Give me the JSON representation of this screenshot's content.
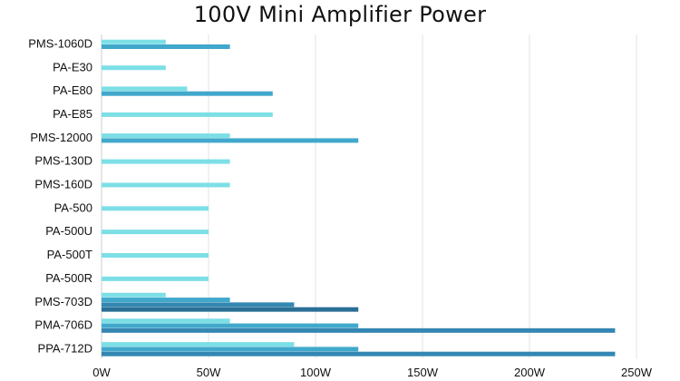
{
  "chart_data": {
    "type": "bar",
    "orientation": "horizontal",
    "title": "100V Mini Amplifier Power",
    "categories": [
      "PMS-1060D",
      "PA-E30",
      "PA-E80",
      "PA-E85",
      "PMS-12000",
      "PMS-130D",
      "PMS-160D",
      "PA-500",
      "PA-500U",
      "PA-500T",
      "PA-500R",
      "PMS-703D",
      "PMA-706D",
      "PPA-712D"
    ],
    "bars": [
      [
        {
          "value": 30,
          "color": "#7ddfe6"
        },
        {
          "value": 60,
          "color": "#41a8cc"
        }
      ],
      [
        {
          "value": 30,
          "color": "#7ddfe6"
        }
      ],
      [
        {
          "value": 40,
          "color": "#7ddfe6"
        },
        {
          "value": 80,
          "color": "#41a8cc"
        }
      ],
      [
        {
          "value": 80,
          "color": "#7ddfe6"
        }
      ],
      [
        {
          "value": 60,
          "color": "#7ddfe6"
        },
        {
          "value": 120,
          "color": "#41a8cc"
        }
      ],
      [
        {
          "value": 60,
          "color": "#7ddfe6"
        }
      ],
      [
        {
          "value": 60,
          "color": "#7ddfe6"
        }
      ],
      [
        {
          "value": 50,
          "color": "#7ddfe6"
        }
      ],
      [
        {
          "value": 50,
          "color": "#7ddfe6"
        }
      ],
      [
        {
          "value": 50,
          "color": "#7ddfe6"
        }
      ],
      [
        {
          "value": 50,
          "color": "#7ddfe6"
        }
      ],
      [
        {
          "value": 30,
          "color": "#7ddfe6"
        },
        {
          "value": 60,
          "color": "#41a8cc"
        },
        {
          "value": 90,
          "color": "#3487b2"
        },
        {
          "value": 120,
          "color": "#2b6f96"
        }
      ],
      [
        {
          "value": 60,
          "color": "#7ddfe6"
        },
        {
          "value": 120,
          "color": "#41a8cc"
        },
        {
          "value": 240,
          "color": "#3487b2"
        }
      ],
      [
        {
          "value": 90,
          "color": "#7ddfe6"
        },
        {
          "value": 120,
          "color": "#41a8cc"
        },
        {
          "value": 240,
          "color": "#3487b2"
        }
      ]
    ],
    "x_ticks": [
      {
        "value": 0,
        "label": "0W"
      },
      {
        "value": 50,
        "label": "50W"
      },
      {
        "value": 100,
        "label": "100W"
      },
      {
        "value": 150,
        "label": "150W"
      },
      {
        "value": 200,
        "label": "200W"
      },
      {
        "value": 250,
        "label": "250W"
      }
    ],
    "xlim": [
      0,
      250
    ],
    "xlabel": "",
    "ylabel": "",
    "grid": "vertical",
    "legend": "none",
    "colors": {
      "grid": "#e3e3e3",
      "axis": "#cccccc",
      "text": "#111111"
    }
  }
}
